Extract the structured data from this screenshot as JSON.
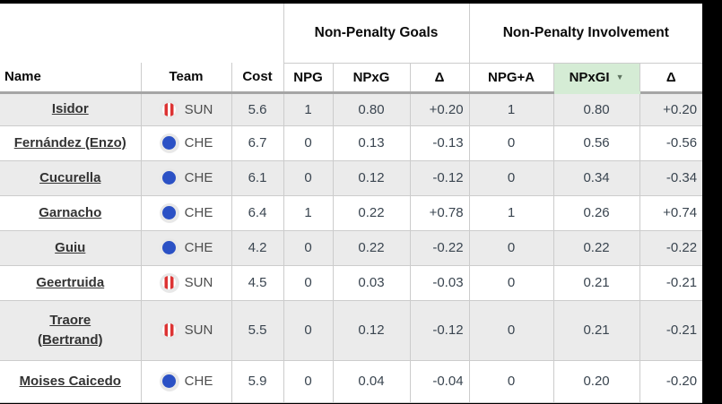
{
  "table": {
    "group_headers": {
      "goals": "Non-Penalty Goals",
      "involvement": "Non-Penalty Involvement"
    },
    "columns": {
      "name": "Name",
      "team": "Team",
      "cost": "Cost",
      "npg": "NPG",
      "npxg": "NPxG",
      "delta_goals": "Δ",
      "npga": "NPG+A",
      "npxgi": "NPxGI",
      "delta_involvement": "Δ"
    },
    "sort": {
      "sorted_column": "NPxGI",
      "indicator": "▼"
    },
    "rows": [
      {
        "name": "Isidor",
        "team": "SUN",
        "cost": "5.6",
        "npg": "1",
        "npxg": "0.80",
        "d1": "+0.20",
        "npga": "1",
        "npxgi": "0.80",
        "d2": "+0.20"
      },
      {
        "name": "Fernández (Enzo)",
        "team": "CHE",
        "cost": "6.7",
        "npg": "0",
        "npxg": "0.13",
        "d1": "-0.13",
        "npga": "0",
        "npxgi": "0.56",
        "d2": "-0.56"
      },
      {
        "name": "Cucurella",
        "team": "CHE",
        "cost": "6.1",
        "npg": "0",
        "npxg": "0.12",
        "d1": "-0.12",
        "npga": "0",
        "npxgi": "0.34",
        "d2": "-0.34"
      },
      {
        "name": "Garnacho",
        "team": "CHE",
        "cost": "6.4",
        "npg": "1",
        "npxg": "0.22",
        "d1": "+0.78",
        "npga": "1",
        "npxgi": "0.26",
        "d2": "+0.74"
      },
      {
        "name": "Guiu",
        "team": "CHE",
        "cost": "4.2",
        "npg": "0",
        "npxg": "0.22",
        "d1": "-0.22",
        "npga": "0",
        "npxgi": "0.22",
        "d2": "-0.22"
      },
      {
        "name": "Geertruida",
        "team": "SUN",
        "cost": "4.5",
        "npg": "0",
        "npxg": "0.03",
        "d1": "-0.03",
        "npga": "0",
        "npxgi": "0.21",
        "d2": "-0.21"
      },
      {
        "name": "Traore\n(Bertrand)",
        "team": "SUN",
        "cost": "5.5",
        "npg": "0",
        "npxg": "0.12",
        "d1": "-0.12",
        "npga": "0",
        "npxgi": "0.21",
        "d2": "-0.21"
      },
      {
        "name": "Moises Caicedo",
        "team": "CHE",
        "cost": "5.9",
        "npg": "0",
        "npxg": "0.04",
        "d1": "-0.04",
        "npga": "0",
        "npxgi": "0.20",
        "d2": "-0.20"
      }
    ],
    "colors": {
      "sorted_header_bg": "#d5ecd5",
      "stripe_row_bg": "#ebebeb",
      "che_badge_blue": "#2b51c5",
      "sun_badge_red": "#dc3333",
      "header_rule_gray": "#a5a5a5",
      "grid_line_gray": "#cccccc"
    }
  }
}
